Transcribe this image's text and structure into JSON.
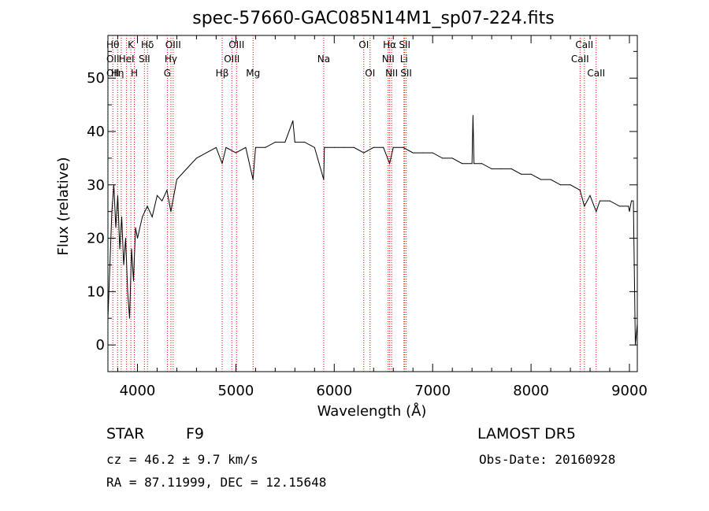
{
  "chart_data": {
    "type": "line",
    "title": "spec-57660-GAC085N14M1_sp07-224.fits",
    "xlabel": "Wavelength (Å)",
    "ylabel": "Flux (relative)",
    "xlim": [
      3700,
      9080
    ],
    "ylim": [
      -5,
      58
    ],
    "xticks": [
      4000,
      5000,
      6000,
      7000,
      8000,
      9000
    ],
    "yticks": [
      0,
      10,
      20,
      30,
      40,
      50
    ],
    "grid": false,
    "line_color": "#000000",
    "marker_color": "#ff0000",
    "series": [
      {
        "x": [
          3700,
          3720,
          3740,
          3760,
          3780,
          3800,
          3820,
          3840,
          3860,
          3880,
          3900,
          3920,
          3940,
          3960,
          3980,
          4000,
          4050,
          4100,
          4150,
          4200,
          4250,
          4300,
          4340,
          4400,
          4500,
          4600,
          4700,
          4800,
          4861,
          4900,
          5000,
          5100,
          5175,
          5200,
          5300,
          5400,
          5500,
          5580,
          5600,
          5700,
          5800,
          5893,
          5900,
          6000,
          6100,
          6200,
          6300,
          6400,
          6500,
          6563,
          6600,
          6700,
          6800,
          6900,
          7000,
          7100,
          7200,
          7300,
          7400,
          7410,
          7420,
          7500,
          7600,
          7700,
          7800,
          7900,
          8000,
          8100,
          8200,
          8300,
          8400,
          8498,
          8542,
          8600,
          8662,
          8700,
          8800,
          8900,
          8990,
          9000,
          9020,
          9040,
          9060,
          9080
        ],
        "y": [
          5,
          15,
          25,
          30,
          22,
          28,
          18,
          24,
          15,
          20,
          10,
          5,
          18,
          12,
          22,
          20,
          24,
          26,
          24,
          28,
          27,
          29,
          25,
          31,
          33,
          35,
          36,
          37,
          34,
          37,
          36,
          37,
          31,
          37,
          37,
          38,
          38,
          42,
          38,
          38,
          37,
          31,
          37,
          37,
          37,
          37,
          36,
          37,
          37,
          34,
          37,
          37,
          36,
          36,
          36,
          35,
          35,
          34,
          34,
          43,
          34,
          34,
          33,
          33,
          33,
          32,
          32,
          31,
          31,
          30,
          30,
          29,
          26,
          28,
          25,
          27,
          27,
          26,
          26,
          25,
          27,
          27,
          0,
          4
        ]
      }
    ],
    "line_markers": [
      {
        "x": 3750,
        "labels": [
          "Hθ",
          "OII",
          "OII"
        ]
      },
      {
        "x": 3798,
        "labels": [
          "",
          "",
          "Hη"
        ]
      },
      {
        "x": 3835,
        "labels": [
          "",
          "",
          ""
        ]
      },
      {
        "x": 3889,
        "labels": [
          "",
          "HeI",
          ""
        ]
      },
      {
        "x": 3933,
        "labels": [
          "K",
          "",
          ""
        ]
      },
      {
        "x": 3968,
        "labels": [
          "",
          "",
          "H"
        ]
      },
      {
        "x": 4071,
        "labels": [
          "",
          "SII",
          ""
        ]
      },
      {
        "x": 4102,
        "labels": [
          "Hδ",
          "",
          ""
        ]
      },
      {
        "x": 4304,
        "labels": [
          "",
          "",
          "G"
        ]
      },
      {
        "x": 4340,
        "labels": [
          "",
          "Hγ",
          ""
        ]
      },
      {
        "x": 4363,
        "labels": [
          "OIII",
          "",
          ""
        ]
      },
      {
        "x": 4861,
        "labels": [
          "",
          "",
          "Hβ"
        ]
      },
      {
        "x": 4959,
        "labels": [
          "",
          "OIII",
          ""
        ]
      },
      {
        "x": 5007,
        "labels": [
          "OIII",
          "",
          ""
        ]
      },
      {
        "x": 5175,
        "labels": [
          "",
          "",
          "Mg"
        ]
      },
      {
        "x": 5893,
        "labels": [
          "",
          "Na",
          ""
        ]
      },
      {
        "x": 6300,
        "labels": [
          "OI",
          "",
          ""
        ]
      },
      {
        "x": 6364,
        "labels": [
          "",
          "",
          "OI"
        ]
      },
      {
        "x": 6548,
        "labels": [
          "",
          "NII",
          ""
        ]
      },
      {
        "x": 6563,
        "labels": [
          "Hα",
          "",
          ""
        ]
      },
      {
        "x": 6583,
        "labels": [
          "",
          "",
          "NII"
        ]
      },
      {
        "x": 6708,
        "labels": [
          "",
          "Li",
          ""
        ]
      },
      {
        "x": 6716,
        "labels": [
          "SII",
          "",
          ""
        ]
      },
      {
        "x": 6731,
        "labels": [
          "",
          "",
          "SII"
        ]
      },
      {
        "x": 8498,
        "labels": [
          "",
          "CaII",
          ""
        ]
      },
      {
        "x": 8542,
        "labels": [
          "CaII",
          "",
          ""
        ]
      },
      {
        "x": 8662,
        "labels": [
          "",
          "",
          "CaII"
        ]
      }
    ]
  },
  "footer": {
    "object_type": "STAR",
    "subclass": "F9",
    "survey": "LAMOST DR5",
    "cz": "cz = 46.2 ± 9.7 km/s",
    "obs_date": "Obs-Date: 20160928",
    "coords": "RA =  87.11999, DEC =  12.15648"
  }
}
